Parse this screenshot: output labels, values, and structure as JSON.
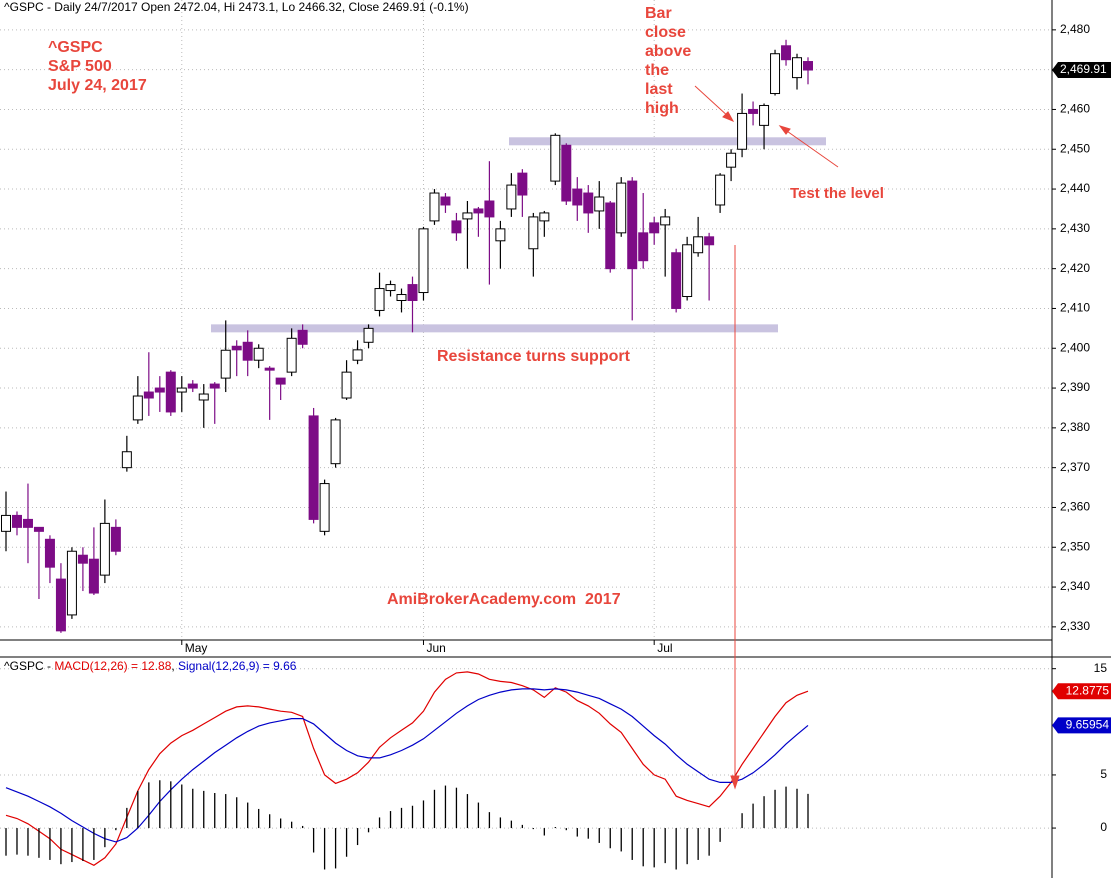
{
  "chart_data": [
    {
      "type": "candlestick",
      "title": "^GSPC - Daily 24/7/2017 Open 2472.04, Hi 2473.1, Lo 2466.32, Close 2469.91 (-0.1%)",
      "categories": [
        null,
        null,
        null,
        null,
        null,
        null,
        null,
        null,
        null,
        null,
        null,
        null,
        null,
        null,
        null,
        null,
        "May",
        null,
        null,
        null,
        null,
        null,
        null,
        null,
        null,
        null,
        null,
        null,
        null,
        null,
        null,
        null,
        null,
        null,
        null,
        null,
        null,
        null,
        "Jun",
        null,
        null,
        null,
        null,
        null,
        null,
        null,
        null,
        null,
        null,
        null,
        null,
        null,
        null,
        null,
        null,
        null,
        null,
        null,
        null,
        "Jul",
        null,
        null,
        null,
        null,
        null,
        null,
        null,
        null,
        null,
        null,
        null,
        null,
        null,
        null
      ],
      "open": [
        2354,
        2358,
        2357,
        2355,
        2352,
        2342,
        2333,
        2348,
        2347,
        2343,
        2355,
        2370,
        2382,
        2389,
        2390,
        2394,
        2389,
        2391,
        2387,
        2391,
        2392.5,
        2400.5,
        2401.5,
        2397,
        2395,
        2392.5,
        2394,
        2404.5,
        2383,
        2354,
        2371,
        2387.5,
        2397,
        2401.5,
        2409.5,
        2414.5,
        2412,
        2416,
        2414,
        2432,
        2438,
        2432,
        2432.5,
        2435,
        2437,
        2427,
        2435,
        2444,
        2425,
        2432,
        2442,
        2451,
        2440,
        2439,
        2434.5,
        2436.5,
        2429,
        2442,
        2429,
        2431.5,
        2431,
        2424,
        2413,
        2424,
        2428,
        2436,
        2445.5,
        2450,
        2460,
        2456,
        2464,
        2476,
        2468,
        2472.04
      ],
      "high": [
        2364,
        2359,
        2366,
        2355,
        2353,
        2346,
        2350,
        2350,
        2355,
        2362,
        2357,
        2378,
        2393,
        2399,
        2393,
        2394.5,
        2393,
        2392,
        2391,
        2391.5,
        2407,
        2402,
        2404.5,
        2401,
        2395.5,
        2392.5,
        2405,
        2406,
        2385,
        2367,
        2382.5,
        2397,
        2402,
        2406,
        2419,
        2417,
        2415,
        2418,
        2430.5,
        2440,
        2439,
        2434,
        2437,
        2435.5,
        2447,
        2432,
        2444,
        2445,
        2434,
        2434.5,
        2454,
        2451.5,
        2443,
        2441,
        2442,
        2437,
        2443,
        2443,
        2439,
        2433,
        2435,
        2425,
        2428,
        2433,
        2429,
        2444,
        2450,
        2464,
        2462,
        2461.5,
        2475,
        2477.5,
        2474,
        2473.1
      ],
      "low": [
        2349,
        2353,
        2346,
        2337,
        2341,
        2328.5,
        2332,
        2339,
        2338,
        2341,
        2348,
        2369,
        2381,
        2383,
        2384,
        2383,
        2384,
        2389,
        2380,
        2381,
        2389,
        2393,
        2393,
        2395,
        2382,
        2387,
        2393,
        2400,
        2356,
        2353,
        2370,
        2387,
        2396,
        2400,
        2408,
        2413,
        2409,
        2404,
        2412,
        2431,
        2434,
        2427,
        2420,
        2428,
        2416,
        2420,
        2433,
        2433,
        2418,
        2428,
        2441,
        2436,
        2432,
        2429,
        2430,
        2419,
        2428,
        2407,
        2420,
        2426,
        2418,
        2409,
        2412,
        2423,
        2412,
        2434,
        2442,
        2448,
        2456,
        2450,
        2463.5,
        2471,
        2465,
        2466.32
      ],
      "close": [
        2358,
        2355,
        2355,
        2354,
        2345,
        2329,
        2349,
        2346,
        2338.5,
        2356,
        2349,
        2374,
        2388,
        2387.5,
        2389,
        2384,
        2390,
        2390,
        2388.5,
        2390,
        2399.5,
        2399.6,
        2397,
        2400,
        2394.5,
        2391,
        2402.5,
        2401,
        2357,
        2366,
        2382,
        2394,
        2399.6,
        2405,
        2415,
        2416,
        2413.5,
        2412,
        2430,
        2439,
        2436,
        2429,
        2434,
        2434,
        2433,
        2430,
        2441,
        2438.5,
        2433,
        2434,
        2453.5,
        2437,
        2436,
        2434,
        2438,
        2420,
        2441.5,
        2420,
        2422,
        2429,
        2433,
        2410,
        2426,
        2428,
        2426,
        2443.5,
        2449,
        2459,
        2459,
        2461,
        2474,
        2472.5,
        2473,
        2469.91
      ],
      "last_label": "2,469.91",
      "up_color": "#ffffff",
      "down_color": "#7d0c86",
      "ylim": [
        2326.7,
        2487.5
      ],
      "yticks": [
        {
          "value": 2330,
          "label": "2,330"
        },
        {
          "value": 2340,
          "label": "2,340"
        },
        {
          "value": 2350,
          "label": "2,350"
        },
        {
          "value": 2360,
          "label": "2,360"
        },
        {
          "value": 2370,
          "label": "2,370"
        },
        {
          "value": 2380,
          "label": "2,380"
        },
        {
          "value": 2390,
          "label": "2,390"
        },
        {
          "value": 2400,
          "label": "2,400"
        },
        {
          "value": 2410,
          "label": "2,410"
        },
        {
          "value": 2420,
          "label": "2,420"
        },
        {
          "value": 2430,
          "label": "2,430"
        },
        {
          "value": 2440,
          "label": "2,440"
        },
        {
          "value": 2450,
          "label": "2,450"
        },
        {
          "value": 2460,
          "label": "2,460"
        },
        {
          "value": 2470,
          "label": "2,470"
        },
        {
          "value": 2480,
          "label": "2,480"
        }
      ],
      "grid": true,
      "levels": [
        2405,
        2452
      ],
      "level_color": "#c9c3e0",
      "annotations": {
        "symbol": "^GSPC",
        "name": "S&P 500",
        "date": "July 24, 2017",
        "bar_note": [
          "Bar",
          "close",
          "above",
          "the",
          "last",
          "high"
        ],
        "test_note": "Test the level",
        "support_note": "Resistance turns support",
        "credit": "AmiBrokerAcademy.com  2017"
      }
    },
    {
      "type": "macd",
      "title_parts": [
        "^GSPC - ",
        "MACD(12,26) = 12.88",
        ", ",
        "Signal(12,26,9) = 9.66"
      ],
      "series": [
        {
          "color": "#e00000",
          "value_label": "12.8775",
          "values": [
            1.2,
            0.9,
            0.4,
            -0.3,
            -1.0,
            -2.0,
            -2.5,
            -3.0,
            -3.5,
            -2.8,
            -1.5,
            1.0,
            3.5,
            5.5,
            7.0,
            8.0,
            8.7,
            9.2,
            9.8,
            10.4,
            11.0,
            11.4,
            11.5,
            11.4,
            11.2,
            11.0,
            10.9,
            10.5,
            7.5,
            5.0,
            4.2,
            4.6,
            5.2,
            6.2,
            7.6,
            8.5,
            9.2,
            9.9,
            11.0,
            12.8,
            14.0,
            14.6,
            14.7,
            14.5,
            14.0,
            13.8,
            13.7,
            13.4,
            13.0,
            12.3,
            13.2,
            12.8,
            12.0,
            11.5,
            10.8,
            9.8,
            9.0,
            7.5,
            6.0,
            5.0,
            4.6,
            3.0,
            2.6,
            2.3,
            2.0,
            3.0,
            4.3,
            6.0,
            7.5,
            9.0,
            10.5,
            11.8,
            12.5,
            12.8775
          ]
        },
        {
          "color": "#0000c8",
          "value_label": "9.65954",
          "values": [
            3.8,
            3.4,
            3.0,
            2.5,
            2.0,
            1.4,
            0.7,
            0.1,
            -0.5,
            -1.0,
            -1.3,
            -0.9,
            0.0,
            1.2,
            2.5,
            3.6,
            4.6,
            5.5,
            6.3,
            7.1,
            7.8,
            8.5,
            9.1,
            9.6,
            9.9,
            10.1,
            10.3,
            10.3,
            9.8,
            8.9,
            8.0,
            7.3,
            6.8,
            6.6,
            6.6,
            6.9,
            7.3,
            7.8,
            8.4,
            9.2,
            10.0,
            10.8,
            11.5,
            12.1,
            12.5,
            12.8,
            13.0,
            13.1,
            13.1,
            13.0,
            13.1,
            13.0,
            12.8,
            12.5,
            12.2,
            11.7,
            11.2,
            10.5,
            9.6,
            8.7,
            7.9,
            6.9,
            6.0,
            5.3,
            4.6,
            4.3,
            4.3,
            4.6,
            5.2,
            6.0,
            6.9,
            7.9,
            8.8,
            9.65954
          ]
        },
        {
          "color": "#000000",
          "style": "histogram",
          "values": [
            -2.6,
            -2.5,
            -2.6,
            -2.8,
            -3.0,
            -3.4,
            -3.2,
            -3.1,
            -3.0,
            -1.8,
            -0.2,
            1.9,
            3.5,
            4.3,
            4.5,
            4.4,
            4.1,
            3.7,
            3.5,
            3.3,
            3.2,
            2.9,
            2.4,
            1.8,
            1.3,
            0.9,
            0.6,
            0.2,
            -2.3,
            -3.9,
            -3.8,
            -2.7,
            -1.6,
            -0.4,
            1.0,
            1.6,
            1.9,
            2.1,
            2.6,
            3.6,
            4.0,
            3.8,
            3.2,
            2.4,
            1.5,
            1.0,
            0.7,
            0.3,
            -0.1,
            -0.7,
            0.1,
            -0.2,
            -0.8,
            -1.0,
            -1.4,
            -1.9,
            -2.2,
            -3.0,
            -3.6,
            -3.7,
            -3.3,
            -3.9,
            -3.4,
            -3.0,
            -2.6,
            -1.3,
            0.0,
            1.4,
            2.3,
            3.0,
            3.6,
            3.9,
            3.7,
            3.21796
          ]
        }
      ],
      "ylim": [
        -4.7,
        16.1
      ],
      "yticks": [
        15,
        5,
        0
      ]
    }
  ]
}
